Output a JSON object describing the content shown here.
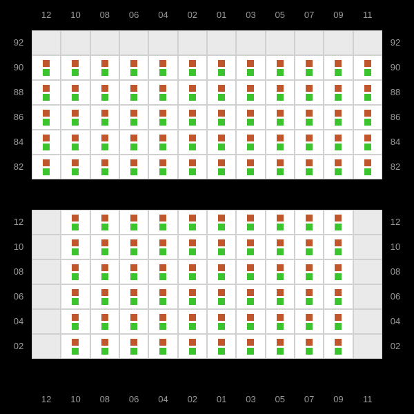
{
  "colors": {
    "label": "#9a9a9a",
    "background": "#000000",
    "grid_border": "#d0d0d0",
    "empty_cell": "#eaeaea",
    "marker_top": "#c0572c",
    "marker_bottom": "#3bc42d"
  },
  "columns": [
    "12",
    "10",
    "08",
    "06",
    "04",
    "02",
    "01",
    "03",
    "05",
    "07",
    "09",
    "11"
  ],
  "panel1": {
    "rows": [
      "92",
      "90",
      "88",
      "86",
      "84",
      "82"
    ],
    "cells": [
      [
        0,
        0,
        0,
        0,
        0,
        0,
        0,
        0,
        0,
        0,
        0,
        0
      ],
      [
        1,
        1,
        1,
        1,
        1,
        1,
        1,
        1,
        1,
        1,
        1,
        1
      ],
      [
        1,
        1,
        1,
        1,
        1,
        1,
        1,
        1,
        1,
        1,
        1,
        1
      ],
      [
        1,
        1,
        1,
        1,
        1,
        1,
        1,
        1,
        1,
        1,
        1,
        1
      ],
      [
        1,
        1,
        1,
        1,
        1,
        1,
        1,
        1,
        1,
        1,
        1,
        1
      ],
      [
        1,
        1,
        1,
        1,
        1,
        1,
        1,
        1,
        1,
        1,
        1,
        1
      ]
    ]
  },
  "panel2": {
    "rows": [
      "12",
      "10",
      "08",
      "06",
      "04",
      "02"
    ],
    "cells": [
      [
        0,
        1,
        1,
        1,
        1,
        1,
        1,
        1,
        1,
        1,
        1,
        0
      ],
      [
        0,
        1,
        1,
        1,
        1,
        1,
        1,
        1,
        1,
        1,
        1,
        0
      ],
      [
        0,
        1,
        1,
        1,
        1,
        1,
        1,
        1,
        1,
        1,
        1,
        0
      ],
      [
        0,
        1,
        1,
        1,
        1,
        1,
        1,
        1,
        1,
        1,
        1,
        0
      ],
      [
        0,
        1,
        1,
        1,
        1,
        1,
        1,
        1,
        1,
        1,
        1,
        0
      ],
      [
        0,
        1,
        1,
        1,
        1,
        1,
        1,
        1,
        1,
        1,
        1,
        0
      ]
    ]
  }
}
